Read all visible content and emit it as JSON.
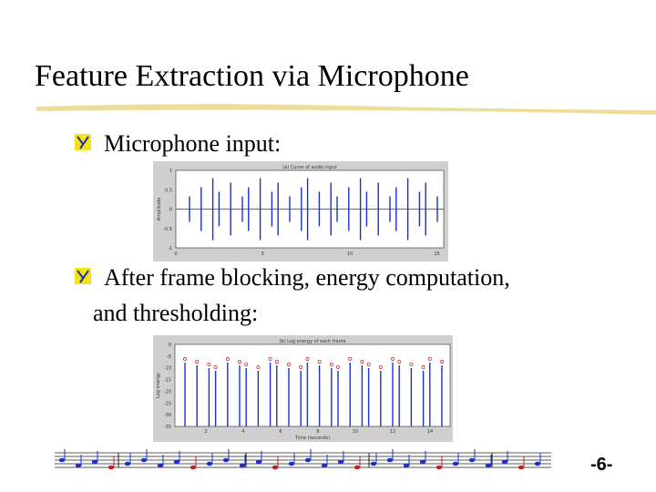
{
  "title": "Feature Extraction via Microphone",
  "bullets": [
    {
      "lines": [
        "Microphone input:"
      ]
    },
    {
      "lines": [
        "After frame blocking, energy computation,",
        "and thresholding:"
      ]
    }
  ],
  "figures": [
    {
      "title": "(a) Curve of audio input",
      "ylabel": "Amplitude",
      "yticks": [
        "1",
        "0.5",
        "0",
        "-0.5",
        "-1"
      ],
      "xticks": [
        "0",
        "5",
        "10",
        "15"
      ]
    },
    {
      "title": "(b) Log energy of each frame",
      "ylabel": "Log energy",
      "xlabel": "Time (seconds)",
      "yticks": [
        "0",
        "-5",
        "-10",
        "-15",
        "-20",
        "-25",
        "-30",
        "-35"
      ],
      "xticks": [
        "2",
        "4",
        "6",
        "8",
        "10",
        "12",
        "14"
      ]
    }
  ],
  "page_number": "-6-"
}
